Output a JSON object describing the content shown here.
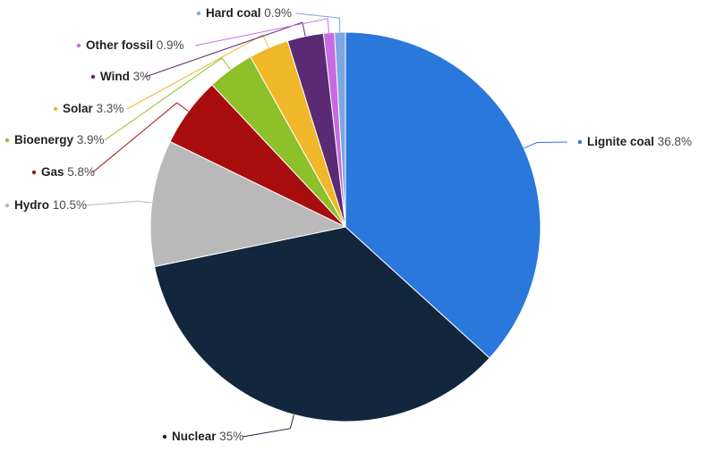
{
  "chart_data": {
    "type": "pie",
    "title": "",
    "start_at": "top",
    "direction": "clockwise",
    "slices": [
      {
        "name": "Lignite coal",
        "value": 36.8,
        "value_label": "36.8%",
        "color": "#2a78dc"
      },
      {
        "name": "Nuclear",
        "value": 35,
        "value_label": "35%",
        "color": "#12263d"
      },
      {
        "name": "Hydro",
        "value": 10.5,
        "value_label": "10.5%",
        "color": "#b9b9b9"
      },
      {
        "name": "Gas",
        "value": 5.8,
        "value_label": "5.8%",
        "color": "#a80d0d"
      },
      {
        "name": "Bioenergy",
        "value": 3.9,
        "value_label": "3.9%",
        "color": "#8ec02a"
      },
      {
        "name": "Solar",
        "value": 3.3,
        "value_label": "3.3%",
        "color": "#f0b728"
      },
      {
        "name": "Wind",
        "value": 3,
        "value_label": "3%",
        "color": "#5b2a75"
      },
      {
        "name": "Other fossil",
        "value": 0.9,
        "value_label": "0.9%",
        "color": "#c76be0"
      },
      {
        "name": "Hard coal",
        "value": 0.9,
        "value_label": "0.9%",
        "color": "#7ea6e0"
      }
    ]
  }
}
